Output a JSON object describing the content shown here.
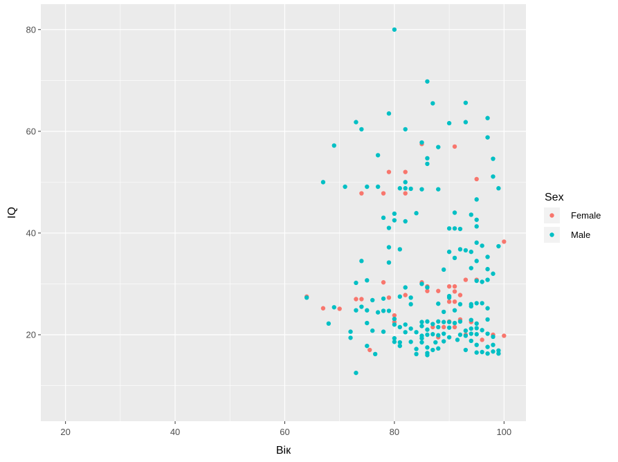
{
  "chart_data": {
    "type": "scatter",
    "title": "",
    "xlabel": "Вік",
    "ylabel": "IQ",
    "xlim": [
      15.5,
      104
    ],
    "ylim": [
      3,
      85
    ],
    "xticks": [
      20,
      40,
      60,
      80,
      100
    ],
    "yticks": [
      20,
      40,
      60,
      80
    ],
    "x_tick_labels": [
      "20",
      "40",
      "60",
      "80",
      "100"
    ],
    "y_tick_labels": [
      "20",
      "40",
      "60",
      "80"
    ],
    "grid": true,
    "panel_background": "#ebebeb",
    "grid_color": "#ffffff",
    "legend": {
      "title": "Sex",
      "placement": "right",
      "entries": [
        {
          "label": "Female",
          "color": "#f8766d"
        },
        {
          "label": "Male",
          "color": "#00bfc4"
        }
      ]
    },
    "series": [
      {
        "name": "Female",
        "color": "#f8766d",
        "points": [
          [
            64,
            27.5
          ],
          [
            67,
            25.2
          ],
          [
            70,
            25.1
          ],
          [
            73,
            27
          ],
          [
            74,
            47.8
          ],
          [
            74,
            27
          ],
          [
            75.5,
            17
          ],
          [
            78,
            47.8
          ],
          [
            78,
            30.3
          ],
          [
            79,
            52
          ],
          [
            79,
            27.3
          ],
          [
            80,
            23.8
          ],
          [
            80,
            22.5
          ],
          [
            82,
            52
          ],
          [
            82,
            47.8
          ],
          [
            82,
            27.8
          ],
          [
            85,
            57.5
          ],
          [
            85,
            30.3
          ],
          [
            86,
            29.5
          ],
          [
            86,
            28.6
          ],
          [
            87,
            21.5
          ],
          [
            88,
            28.6
          ],
          [
            88,
            19.5
          ],
          [
            89,
            21.5
          ],
          [
            90,
            29.5
          ],
          [
            90,
            26.5
          ],
          [
            90,
            22.6
          ],
          [
            91,
            57
          ],
          [
            91,
            29.5
          ],
          [
            91,
            28.5
          ],
          [
            91,
            26.5
          ],
          [
            91,
            21.5
          ],
          [
            92,
            27.8
          ],
          [
            92,
            23
          ],
          [
            93,
            30.8
          ],
          [
            93,
            20
          ],
          [
            94,
            22.5
          ],
          [
            95,
            50.6
          ],
          [
            95,
            30.8
          ],
          [
            96,
            19
          ],
          [
            98,
            20
          ],
          [
            100,
            38.3
          ],
          [
            100,
            19.8
          ]
        ]
      },
      {
        "name": "Male",
        "color": "#00bfc4",
        "points": [
          [
            64,
            27.3
          ],
          [
            67,
            50
          ],
          [
            68,
            22.2
          ],
          [
            69,
            57.2
          ],
          [
            69,
            25.4
          ],
          [
            71,
            49.1
          ],
          [
            72,
            20.6
          ],
          [
            72,
            19.4
          ],
          [
            73,
            61.8
          ],
          [
            73,
            30.2
          ],
          [
            73,
            24.8
          ],
          [
            73,
            12.5
          ],
          [
            74,
            60.4
          ],
          [
            74,
            34.5
          ],
          [
            74,
            25.5
          ],
          [
            75,
            49.1
          ],
          [
            75,
            30.7
          ],
          [
            75,
            24.8
          ],
          [
            75,
            22.3
          ],
          [
            75,
            17.8
          ],
          [
            76,
            20.8
          ],
          [
            76,
            26.8
          ],
          [
            76.5,
            16.2
          ],
          [
            77,
            55.3
          ],
          [
            77,
            49.1
          ],
          [
            77,
            24.4
          ],
          [
            78,
            43
          ],
          [
            78,
            27.1
          ],
          [
            78,
            24.7
          ],
          [
            78,
            20.6
          ],
          [
            79,
            63.5
          ],
          [
            79,
            41
          ],
          [
            79,
            37.2
          ],
          [
            79,
            34.2
          ],
          [
            79,
            24.7
          ],
          [
            80,
            80
          ],
          [
            80,
            43.8
          ],
          [
            80,
            42.5
          ],
          [
            80,
            23.1
          ],
          [
            80,
            22
          ],
          [
            80,
            19.3
          ],
          [
            80,
            18.6
          ],
          [
            81,
            48.8
          ],
          [
            81,
            36.8
          ],
          [
            81,
            27.5
          ],
          [
            81,
            21.5
          ],
          [
            81,
            18.5
          ],
          [
            81,
            17.8
          ],
          [
            82,
            60.4
          ],
          [
            82,
            50
          ],
          [
            82,
            48.8
          ],
          [
            82,
            42.3
          ],
          [
            82,
            29.3
          ],
          [
            82,
            22
          ],
          [
            82,
            20.5
          ],
          [
            83,
            48.7
          ],
          [
            83,
            27.3
          ],
          [
            83,
            26
          ],
          [
            83,
            21.2
          ],
          [
            83,
            18.6
          ],
          [
            84,
            43.9
          ],
          [
            84,
            20.5
          ],
          [
            84,
            17.2
          ],
          [
            84,
            16.2
          ],
          [
            85,
            57.8
          ],
          [
            85,
            48.6
          ],
          [
            85,
            30
          ],
          [
            85,
            22.5
          ],
          [
            85,
            21.7
          ],
          [
            85,
            19.8
          ],
          [
            85,
            19.3
          ],
          [
            85,
            18.5
          ],
          [
            86,
            69.8
          ],
          [
            86,
            54.7
          ],
          [
            86,
            53.6
          ],
          [
            86,
            29.3
          ],
          [
            86,
            22.6
          ],
          [
            86,
            21
          ],
          [
            86,
            20
          ],
          [
            86,
            17.5
          ],
          [
            86,
            16.4
          ],
          [
            86,
            16
          ],
          [
            87,
            65.5
          ],
          [
            87,
            22.1
          ],
          [
            87,
            20.1
          ],
          [
            87,
            17
          ],
          [
            87.5,
            18.5
          ],
          [
            88,
            56.9
          ],
          [
            88,
            48.6
          ],
          [
            88,
            26.1
          ],
          [
            88,
            22.6
          ],
          [
            88,
            21.5
          ],
          [
            88,
            19.9
          ],
          [
            88,
            17.3
          ],
          [
            89,
            32.8
          ],
          [
            89,
            24.5
          ],
          [
            89,
            22.5
          ],
          [
            89,
            20.2
          ],
          [
            89,
            18.7
          ],
          [
            90,
            61.6
          ],
          [
            90,
            40.9
          ],
          [
            90,
            36.3
          ],
          [
            90,
            27.6
          ],
          [
            90,
            27.3
          ],
          [
            90,
            22.5
          ],
          [
            90,
            21.4
          ],
          [
            90,
            19.5
          ],
          [
            91,
            44
          ],
          [
            91,
            40.9
          ],
          [
            91,
            35.1
          ],
          [
            91,
            24.8
          ],
          [
            91,
            22.3
          ],
          [
            91.5,
            19
          ],
          [
            92,
            40.8
          ],
          [
            92,
            36.8
          ],
          [
            92,
            26
          ],
          [
            92,
            22.6
          ],
          [
            92,
            20
          ],
          [
            93,
            65.6
          ],
          [
            93,
            61.8
          ],
          [
            93,
            36.6
          ],
          [
            93,
            20.8
          ],
          [
            93,
            19.8
          ],
          [
            93,
            17
          ],
          [
            94,
            43.6
          ],
          [
            94,
            36.3
          ],
          [
            94,
            33.1
          ],
          [
            94,
            26
          ],
          [
            94,
            25.6
          ],
          [
            94,
            22.9
          ],
          [
            94,
            21.2
          ],
          [
            94,
            20.2
          ],
          [
            94,
            18.8
          ],
          [
            95,
            46.6
          ],
          [
            95,
            42.6
          ],
          [
            95,
            41.3
          ],
          [
            95,
            38.1
          ],
          [
            95,
            34.5
          ],
          [
            95,
            30.6
          ],
          [
            95,
            26.2
          ],
          [
            95,
            22.2
          ],
          [
            95,
            21.3
          ],
          [
            95,
            20.1
          ],
          [
            95,
            18
          ],
          [
            95,
            16.5
          ],
          [
            96,
            37.5
          ],
          [
            96,
            30.4
          ],
          [
            96,
            26.2
          ],
          [
            96,
            20.9
          ],
          [
            96,
            16.6
          ],
          [
            97,
            62.6
          ],
          [
            97,
            58.8
          ],
          [
            97,
            35.3
          ],
          [
            97,
            32.9
          ],
          [
            97,
            30.8
          ],
          [
            97,
            25.2
          ],
          [
            97,
            23
          ],
          [
            97,
            20.2
          ],
          [
            97,
            17.6
          ],
          [
            97,
            16.3
          ],
          [
            98,
            54.6
          ],
          [
            98,
            51.1
          ],
          [
            98,
            32
          ],
          [
            98,
            19.6
          ],
          [
            98,
            18
          ],
          [
            98,
            16.7
          ],
          [
            99,
            48.8
          ],
          [
            99,
            37.4
          ],
          [
            99,
            16.9
          ],
          [
            99,
            16.3
          ]
        ]
      }
    ]
  }
}
